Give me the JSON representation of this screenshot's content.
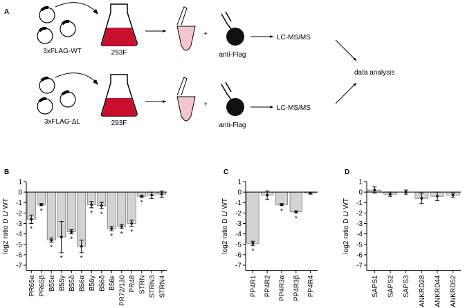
{
  "panel_a": {
    "label": "A",
    "rows": [
      {
        "plasmid": "3xFLAG-WT",
        "cells": "293F",
        "antibody": "anti-Flag",
        "method": "LC-MS/MS"
      },
      {
        "plasmid": "3xFLAG-ΔL",
        "cells": "293F",
        "antibody": "anti-Flag",
        "method": "LC-MS/MS"
      }
    ],
    "operator": "+",
    "output": "data analysis"
  },
  "chart_data": [
    {
      "type": "bar",
      "panel": "B",
      "ylabel": "log2 ratio D L/ WT",
      "color": "#d3d3d3",
      "marker": "*",
      "categories": [
        "PR65α",
        "PR65β",
        "B55α",
        "B55γ",
        "B55δ",
        "B56α",
        "B56γ",
        "B56δ",
        "B56ε",
        "PR72/130",
        "PR48",
        "STRN",
        "STRN3",
        "STRN4"
      ],
      "values": [
        -2.6,
        -1.2,
        -4.6,
        -4.3,
        -3.8,
        -5.2,
        -1.2,
        -1.3,
        -3.5,
        -3.3,
        -3.0,
        -0.4,
        -0.3,
        -0.2
      ],
      "errors": [
        0.4,
        0.1,
        0.2,
        1.5,
        0.2,
        0.6,
        0.3,
        0.3,
        0.2,
        0.2,
        0.3,
        0.1,
        0.3,
        0.3
      ],
      "significant": [
        true,
        true,
        true,
        true,
        true,
        true,
        true,
        true,
        true,
        true,
        true,
        true,
        false,
        false
      ],
      "ylim": [
        -7.5,
        1
      ],
      "yticks": [
        1,
        0,
        -1,
        -2,
        -3,
        -4,
        -5,
        -6,
        -7
      ]
    },
    {
      "type": "bar",
      "panel": "C",
      "ylabel": "log2 ratio D L/ WT",
      "color": "#d3d3d3",
      "marker": "*",
      "categories": [
        "PP4R1",
        "PP4R2",
        "PP4R3α",
        "PP4R3β",
        "PP4R4"
      ],
      "values": [
        -4.9,
        -0.3,
        -1.2,
        -1.9,
        -0.1
      ],
      "errors": [
        0.2,
        0.4,
        0.1,
        0.1,
        0.1
      ],
      "significant": [
        true,
        false,
        true,
        true,
        false
      ],
      "ylim": [
        -7.5,
        1
      ],
      "yticks": [
        1,
        0,
        -1,
        -2,
        -3,
        -4,
        -5,
        -6,
        -7
      ]
    },
    {
      "type": "bar",
      "panel": "D",
      "ylabel": "log2 ratio D L/ WT",
      "color": "#d3d3d3",
      "marker": "*",
      "categories": [
        "SAPS1",
        "SAPS2",
        "SAPS3",
        "ANKRD28",
        "ANKRD44",
        "ANKRD52"
      ],
      "values": [
        0.2,
        -0.2,
        0.0,
        -0.6,
        -0.4,
        -0.3
      ],
      "errors": [
        0.3,
        0.2,
        0.2,
        0.5,
        0.4,
        0.2
      ],
      "significant": [
        false,
        false,
        false,
        false,
        false,
        false
      ],
      "ylim": [
        -7.5,
        1
      ],
      "yticks": [
        1,
        0,
        -1,
        -2,
        -3,
        -4,
        -5,
        -6,
        -7
      ]
    }
  ]
}
